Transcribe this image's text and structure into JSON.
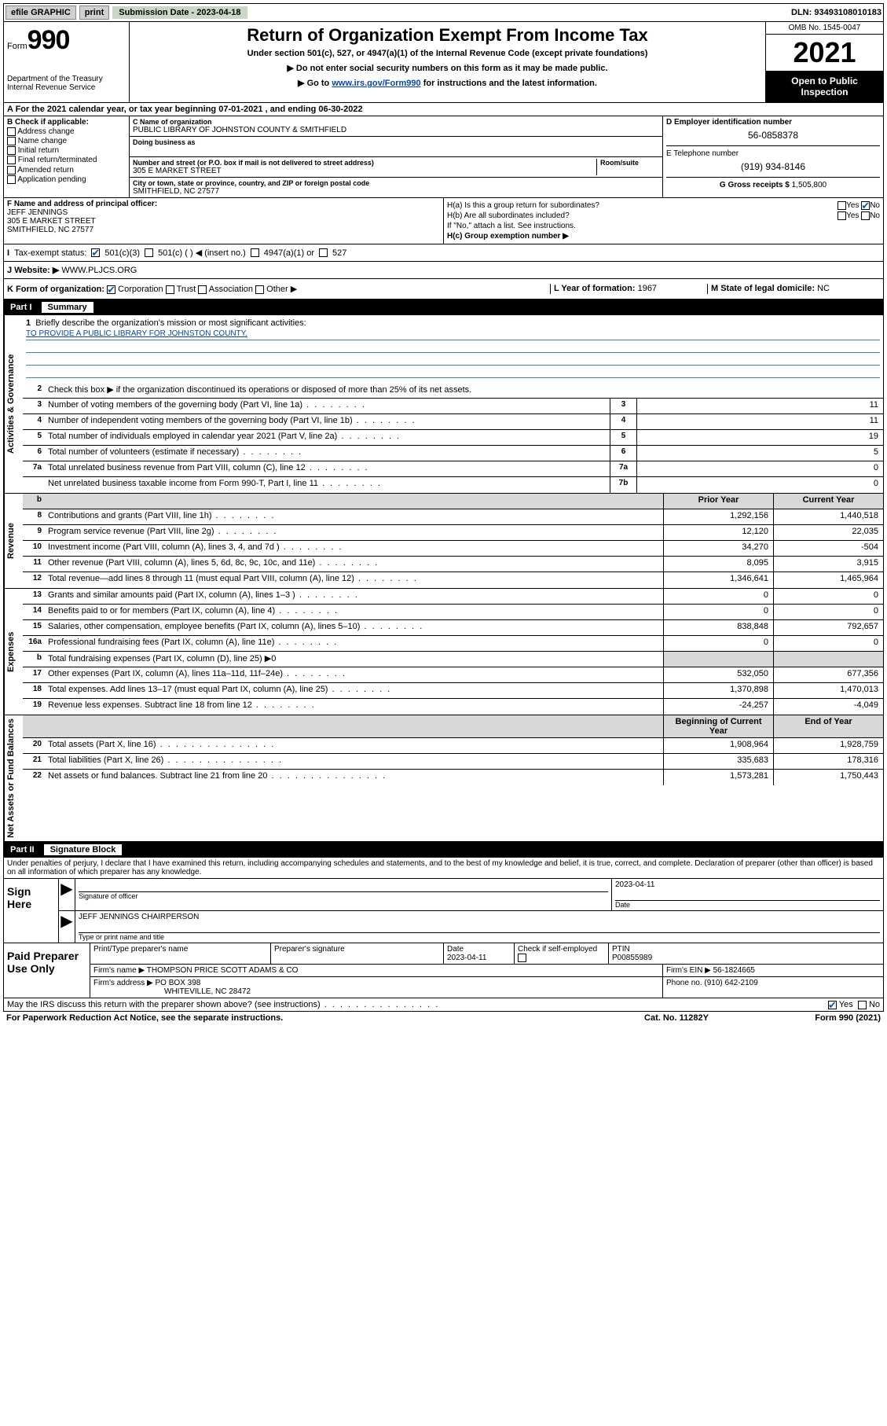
{
  "top": {
    "efile": "efile GRAPHIC",
    "print": "print",
    "sub_date_label": "Submission Date - 2023-04-18",
    "dln": "DLN: 93493108010183"
  },
  "hdr": {
    "form_word": "Form",
    "form_num": "990",
    "dept": "Department of the Treasury\nInternal Revenue Service",
    "title": "Return of Organization Exempt From Income Tax",
    "sub": "Under section 501(c), 527, or 4947(a)(1) of the Internal Revenue Code (except private foundations)",
    "line1": "▶ Do not enter social security numbers on this form as it may be made public.",
    "line2_pre": "▶ Go to ",
    "line2_link": "www.irs.gov/Form990",
    "line2_post": " for instructions and the latest information.",
    "omb": "OMB No. 1545-0047",
    "year": "2021",
    "open": "Open to Public Inspection"
  },
  "A": {
    "text_pre": "A For the 2021 calendar year, or tax year beginning ",
    "begin": "07-01-2021",
    "mid": " , and ending ",
    "end": "06-30-2022"
  },
  "B": {
    "hdr": "B Check if applicable:",
    "items": [
      "Address change",
      "Name change",
      "Initial return",
      "Final return/terminated",
      "Amended return",
      "Application pending"
    ]
  },
  "C": {
    "name_lbl": "C Name of organization",
    "name": "PUBLIC LIBRARY OF JOHNSTON COUNTY & SMITHFIELD",
    "dba_lbl": "Doing business as",
    "addr_lbl": "Number and street (or P.O. box if mail is not delivered to street address)",
    "room_lbl": "Room/suite",
    "addr": "305 E MARKET STREET",
    "city_lbl": "City or town, state or province, country, and ZIP or foreign postal code",
    "city": "SMITHFIELD, NC  27577"
  },
  "D": {
    "ein_lbl": "D Employer identification number",
    "ein": "56-0858378",
    "tel_lbl": "E Telephone number",
    "tel": "(919) 934-8146",
    "gross_lbl": "G Gross receipts $",
    "gross": "1,505,800"
  },
  "F": {
    "lbl": "F Name and address of principal officer:",
    "name": "JEFF JENNINGS",
    "addr1": "305 E MARKET STREET",
    "addr2": "SMITHFIELD, NC  27577"
  },
  "H": {
    "a": "H(a)  Is this a group return for subordinates?",
    "a_yes": "Yes",
    "a_no": "No",
    "b": "H(b)  Are all subordinates included?",
    "b_yes": "Yes",
    "b_no": "No",
    "b_note": "If \"No,\" attach a list. See instructions.",
    "c": "H(c)  Group exemption number ▶"
  },
  "I": {
    "lbl": "Tax-exempt status:",
    "o1": "501(c)(3)",
    "o2": "501(c) (  ) ◀ (insert no.)",
    "o3": "4947(a)(1) or",
    "o4": "527"
  },
  "J": {
    "lbl": "Website: ▶",
    "val": " WWW.PLJCS.ORG"
  },
  "K": {
    "lbl": "K Form of organization:",
    "o1": "Corporation",
    "o2": "Trust",
    "o3": "Association",
    "o4": "Other ▶",
    "L_lbl": "L Year of formation:",
    "L_val": "1967",
    "M_lbl": "M State of legal domicile:",
    "M_val": "NC"
  },
  "part1": {
    "num": "Part I",
    "title": "Summary"
  },
  "vtabs": {
    "ag": "Activities & Governance",
    "rev": "Revenue",
    "exp": "Expenses",
    "na": "Net Assets or Fund Balances"
  },
  "s1": {
    "l1a": "Briefly describe the organization's mission or most significant activities:",
    "l1b": "TO PROVIDE A PUBLIC LIBRARY FOR JOHNSTON COUNTY.",
    "l2": "Check this box ▶      if the organization discontinued its operations or disposed of more than 25% of its net assets.",
    "rows": [
      {
        "n": "3",
        "t": "Number of voting members of the governing body (Part VI, line 1a)",
        "c": "3",
        "v": "11"
      },
      {
        "n": "4",
        "t": "Number of independent voting members of the governing body (Part VI, line 1b)",
        "c": "4",
        "v": "11"
      },
      {
        "n": "5",
        "t": "Total number of individuals employed in calendar year 2021 (Part V, line 2a)",
        "c": "5",
        "v": "19"
      },
      {
        "n": "6",
        "t": "Total number of volunteers (estimate if necessary)",
        "c": "6",
        "v": "5"
      },
      {
        "n": "7a",
        "t": "Total unrelated business revenue from Part VIII, column (C), line 12",
        "c": "7a",
        "v": "0"
      },
      {
        "n": "",
        "t": "Net unrelated business taxable income from Form 990-T, Part I, line 11",
        "c": "7b",
        "v": "0"
      }
    ]
  },
  "s2": {
    "col_prior": "Prior Year",
    "col_curr": "Current Year",
    "rows": [
      {
        "n": "b",
        "t": "",
        "p": "",
        "c": "",
        "grey": true
      },
      {
        "n": "8",
        "t": "Contributions and grants (Part VIII, line 1h)",
        "p": "1,292,156",
        "c": "1,440,518"
      },
      {
        "n": "9",
        "t": "Program service revenue (Part VIII, line 2g)",
        "p": "12,120",
        "c": "22,035"
      },
      {
        "n": "10",
        "t": "Investment income (Part VIII, column (A), lines 3, 4, and 7d )",
        "p": "34,270",
        "c": "-504"
      },
      {
        "n": "11",
        "t": "Other revenue (Part VIII, column (A), lines 5, 6d, 8c, 9c, 10c, and 11e)",
        "p": "8,095",
        "c": "3,915"
      },
      {
        "n": "12",
        "t": "Total revenue—add lines 8 through 11 (must equal Part VIII, column (A), line 12)",
        "p": "1,346,641",
        "c": "1,465,964"
      }
    ]
  },
  "s3": {
    "rows": [
      {
        "n": "13",
        "t": "Grants and similar amounts paid (Part IX, column (A), lines 1–3 )",
        "p": "0",
        "c": "0"
      },
      {
        "n": "14",
        "t": "Benefits paid to or for members (Part IX, column (A), line 4)",
        "p": "0",
        "c": "0"
      },
      {
        "n": "15",
        "t": "Salaries, other compensation, employee benefits (Part IX, column (A), lines 5–10)",
        "p": "838,848",
        "c": "792,657"
      },
      {
        "n": "16a",
        "t": "Professional fundraising fees (Part IX, column (A), line 11e)",
        "p": "0",
        "c": "0"
      },
      {
        "n": "b",
        "t": "Total fundraising expenses (Part IX, column (D), line 25) ▶0",
        "p": "",
        "c": "",
        "grey": true
      },
      {
        "n": "17",
        "t": "Other expenses (Part IX, column (A), lines 11a–11d, 11f–24e)",
        "p": "532,050",
        "c": "677,356"
      },
      {
        "n": "18",
        "t": "Total expenses. Add lines 13–17 (must equal Part IX, column (A), line 25)",
        "p": "1,370,898",
        "c": "1,470,013"
      },
      {
        "n": "19",
        "t": "Revenue less expenses. Subtract line 18 from line 12",
        "p": "-24,257",
        "c": "-4,049"
      }
    ]
  },
  "s4": {
    "col_begin": "Beginning of Current Year",
    "col_end": "End of Year",
    "rows": [
      {
        "n": "20",
        "t": "Total assets (Part X, line 16)",
        "p": "1,908,964",
        "c": "1,928,759"
      },
      {
        "n": "21",
        "t": "Total liabilities (Part X, line 26)",
        "p": "335,683",
        "c": "178,316"
      },
      {
        "n": "22",
        "t": "Net assets or fund balances. Subtract line 21 from line 20",
        "p": "1,573,281",
        "c": "1,750,443"
      }
    ]
  },
  "part2": {
    "num": "Part II",
    "title": "Signature Block"
  },
  "decl": "Under penalties of perjury, I declare that I have examined this return, including accompanying schedules and statements, and to the best of my knowledge and belief, it is true, correct, and complete. Declaration of preparer (other than officer) is based on all information of which preparer has any knowledge.",
  "sign": {
    "lbl": "Sign Here",
    "sig_line": "Signature of officer",
    "date": "2023-04-11",
    "date_lbl": "Date",
    "name": "JEFF JENNINGS CHAIRPERSON",
    "name_lbl": "Type or print name and title"
  },
  "prep": {
    "lbl": "Paid Preparer Use Only",
    "h1": "Print/Type preparer's name",
    "h2": "Preparer's signature",
    "h3": "Date",
    "h3v": "2023-04-11",
    "h4": "Check      if self-employed",
    "h5": "PTIN",
    "h5v": "P00855989",
    "firm_lbl": "Firm's name    ▶",
    "firm": "THOMPSON PRICE SCOTT ADAMS & CO",
    "ein_lbl": "Firm's EIN ▶",
    "ein": "56-1824665",
    "addr_lbl": "Firm's address ▶",
    "addr1": "PO BOX 398",
    "addr2": "WHITEVILLE, NC  28472",
    "phone_lbl": "Phone no.",
    "phone": "(910) 642-2109"
  },
  "footer": {
    "q": "May the IRS discuss this return with the preparer shown above? (see instructions)",
    "yes": "Yes",
    "no": "No",
    "pra": "For Paperwork Reduction Act Notice, see the separate instructions.",
    "cat": "Cat. No. 11282Y",
    "form": "Form 990 (2021)"
  }
}
